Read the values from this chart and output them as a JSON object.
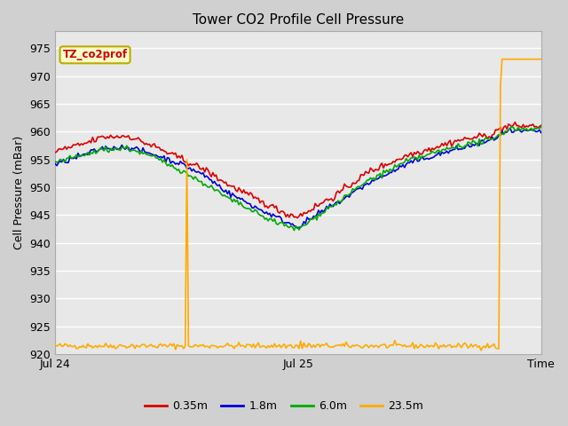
{
  "title": "Tower CO2 Profile Cell Pressure",
  "ylabel": "Cell Pressure (mBar)",
  "ylim": [
    920,
    978
  ],
  "yticks": [
    920,
    925,
    930,
    935,
    940,
    945,
    950,
    955,
    960,
    965,
    970,
    975
  ],
  "xtick_positions": [
    0.0,
    0.5,
    1.0
  ],
  "xtick_labels": [
    "Jul 24",
    "Jul 25",
    "Time"
  ],
  "legend_label": "TZ_co2prof",
  "legend_box_color": "#ffffcc",
  "legend_box_edge": "#bbaa00",
  "legend_text_color": "#cc0000",
  "fig_bg_color": "#d0d0d0",
  "plot_bg_color": "#e8e8e8",
  "grid_color": "#ffffff",
  "series_labels": [
    "0.35m",
    "1.8m",
    "6.0m",
    "23.5m"
  ],
  "series_colors": [
    "#dd0000",
    "#0000dd",
    "#00aa00",
    "#ffaa00"
  ],
  "linewidth": 1.2
}
